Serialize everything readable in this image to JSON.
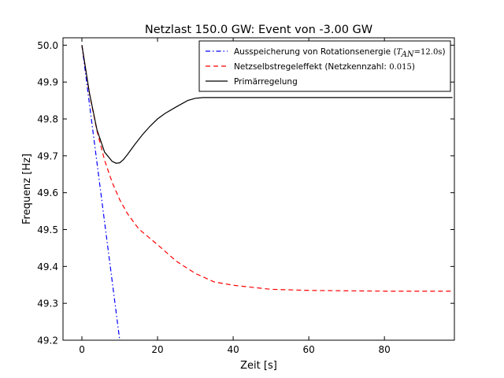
{
  "chart_data": {
    "type": "line",
    "title": "Netzlast 150.0 GW: Event von -3.00 GW",
    "xlabel": "Zeit [s]",
    "ylabel": "Frequenz [Hz]",
    "xlim": [
      -5,
      98.5
    ],
    "ylim": [
      49.2,
      50.02
    ],
    "xticks": [
      0,
      20,
      40,
      60,
      80
    ],
    "xtick_labels": [
      "0",
      "20",
      "40",
      "60",
      "80"
    ],
    "yticks": [
      49.2,
      49.3,
      49.4,
      49.5,
      49.6,
      49.7,
      49.8,
      49.9,
      50.0
    ],
    "ytick_labels": [
      "49.2",
      "49.3",
      "49.4",
      "49.5",
      "49.6",
      "49.7",
      "49.8",
      "49.9",
      "50.0"
    ],
    "grid": false,
    "legend_position": "top-right",
    "series": [
      {
        "name": "Ausspeicherung von Rotationsenergie (T_AN=12.0s)",
        "legend_label": "Ausspeicherung von Rotationsenergie (",
        "legend_math_var": "T",
        "legend_math_sub": "AN",
        "legend_math_eq": "=12.0s",
        "legend_close": ")",
        "color": "#0000ff",
        "style": "dashdot",
        "x": [
          0,
          2,
          4,
          6,
          8,
          10
        ],
        "y": [
          50.0,
          49.84,
          49.68,
          49.52,
          49.36,
          49.2
        ]
      },
      {
        "name": "Netzselbstregeleffekt (Netzkennzahl: 0.015)",
        "legend_label": "Netzselbstregeleffekt (Netzkennzahl: ",
        "legend_math_value": "0.015",
        "legend_close": ")",
        "color": "#ff0000",
        "style": "dashed",
        "x": [
          0,
          2,
          4,
          6,
          8,
          10,
          12,
          15,
          20,
          25,
          30,
          35,
          40,
          50,
          60,
          70,
          80,
          98
        ],
        "y": [
          50.0,
          49.868,
          49.767,
          49.688,
          49.628,
          49.581,
          49.544,
          49.502,
          49.459,
          49.414,
          49.381,
          49.358,
          49.349,
          49.338,
          49.335,
          49.334,
          49.333,
          49.333
        ]
      },
      {
        "name": "Primärregelung",
        "legend_label": "Primärregelung",
        "color": "#000000",
        "style": "solid",
        "x": [
          0,
          2,
          4,
          6,
          8,
          9,
          10,
          11,
          12,
          14,
          16,
          18,
          20,
          22,
          25,
          28,
          30,
          32,
          35,
          40,
          60,
          98
        ],
        "y": [
          50.0,
          49.87,
          49.77,
          49.71,
          49.685,
          49.68,
          49.681,
          49.69,
          49.703,
          49.731,
          49.757,
          49.78,
          49.8,
          49.815,
          49.833,
          49.85,
          49.856,
          49.858,
          49.858,
          49.858,
          49.858,
          49.858
        ]
      }
    ]
  }
}
